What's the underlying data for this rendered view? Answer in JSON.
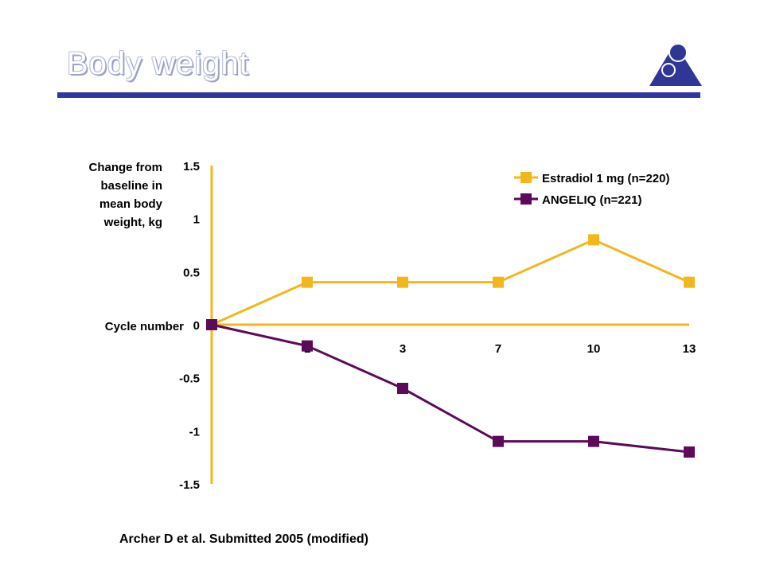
{
  "slide": {
    "title": "Body weight",
    "source": "Archer D et al. Submitted 2005 (modified)"
  },
  "colors": {
    "title_rule": "#3137a0",
    "axis": "#f2b71a",
    "logo": "#2f3796"
  },
  "icons": {
    "logo": "figure-triangle-logo-icon"
  },
  "chart_data": {
    "type": "line",
    "ylabel": [
      "Change from",
      "baseline in",
      "mean body",
      "weight, kg"
    ],
    "xlabel": "Cycle number",
    "x": [
      0,
      1,
      3,
      7,
      10,
      13
    ],
    "x_tick_labels": [
      "1",
      "3",
      "7",
      "10",
      "13"
    ],
    "y_ticks": [
      1.5,
      1,
      0.5,
      0,
      -0.5,
      -1,
      -1.5
    ],
    "y_tick_labels": [
      "1.5",
      "1",
      "0.5",
      "0",
      "-0.5",
      "-1",
      "-1.5"
    ],
    "ylim": [
      -1.5,
      1.5
    ],
    "legend_position": "top-right",
    "grid": false,
    "series": [
      {
        "name": "Estradiol 1 mg (n=220)",
        "color": "#f2b71a",
        "values": [
          0,
          0.4,
          0.4,
          0.4,
          0.8,
          0.4
        ]
      },
      {
        "name": "ANGELIQ (n=221)",
        "color": "#5c0a5a",
        "values": [
          0,
          -0.2,
          -0.6,
          -1.1,
          -1.1,
          -1.2
        ]
      }
    ]
  }
}
